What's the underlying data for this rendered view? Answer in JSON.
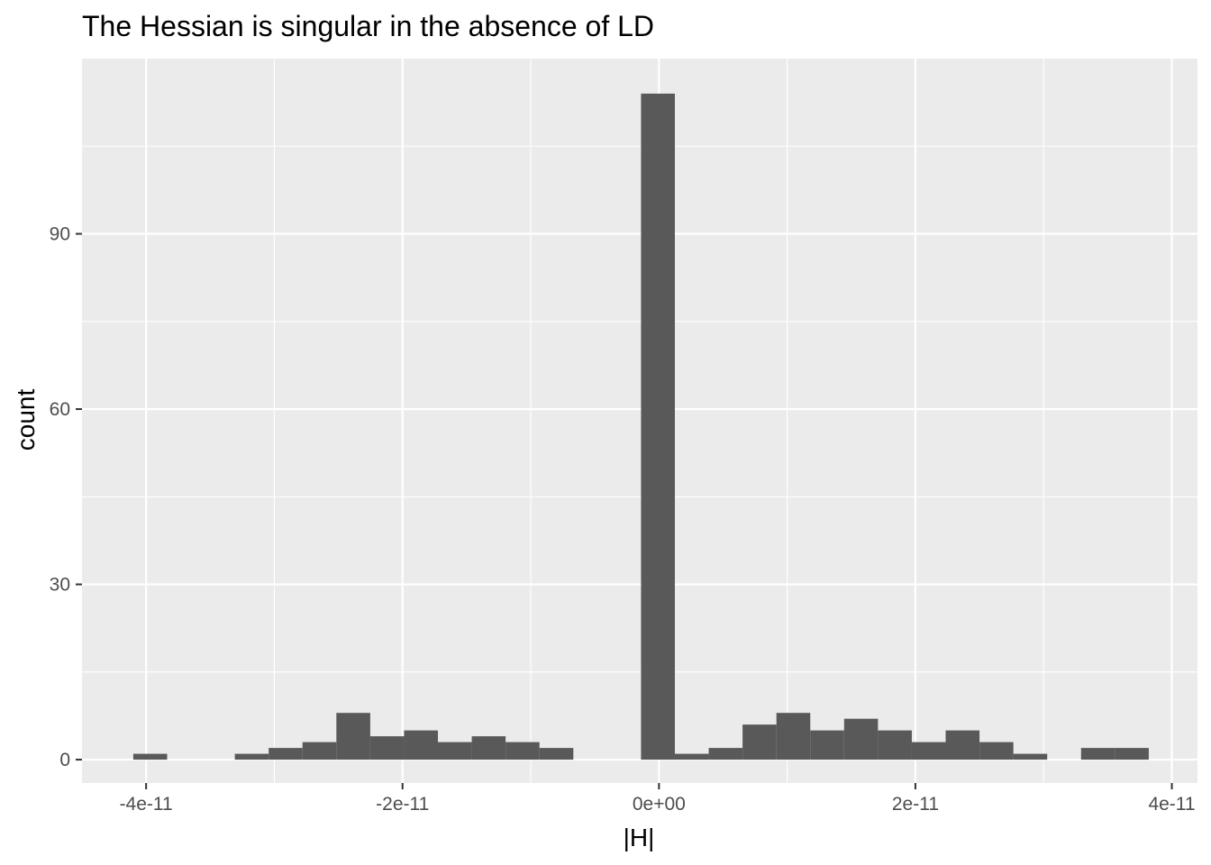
{
  "chart_data": {
    "type": "bar",
    "title": "The Hessian is singular in the absence of LD",
    "xlabel": "|H|",
    "ylabel": "count",
    "xlim": [
      -4.5e-11,
      4.2e-11
    ],
    "ylim": [
      -4,
      120
    ],
    "x_ticks": [
      {
        "value": -4e-11,
        "label": "-4e-11"
      },
      {
        "value": -2e-11,
        "label": "-2e-11"
      },
      {
        "value": 0,
        "label": "0e+00"
      },
      {
        "value": 2e-11,
        "label": "2e-11"
      },
      {
        "value": 4e-11,
        "label": "4e-11"
      }
    ],
    "y_ticks": [
      {
        "value": 0,
        "label": "0"
      },
      {
        "value": 30,
        "label": "30"
      },
      {
        "value": 60,
        "label": "60"
      },
      {
        "value": 90,
        "label": "90"
      }
    ],
    "bin_width": 2.64e-12,
    "bins_start": [
      -4.1e-11,
      -3.836e-11,
      -3.572e-11,
      -3.308e-11,
      -3.044e-11,
      -2.78e-11,
      -2.516e-11,
      -2.252e-11,
      -1.988e-11,
      -1.724e-11,
      -1.46e-11,
      -1.196e-11,
      -9.32e-12,
      -6.68e-12,
      -4.04e-12,
      -1.4e-12,
      1.24e-12,
      3.88e-12,
      6.52e-12,
      9.16e-12,
      1.18e-11,
      1.444e-11,
      1.708e-11,
      1.972e-11,
      2.236e-11,
      2.5e-11,
      2.764e-11,
      3.028e-11,
      3.292e-11,
      3.556e-11
    ],
    "counts": [
      1,
      0,
      0,
      1,
      2,
      3,
      8,
      4,
      5,
      3,
      4,
      3,
      2,
      0,
      0,
      114,
      1,
      2,
      6,
      8,
      5,
      7,
      5,
      3,
      5,
      3,
      1,
      0,
      2,
      2
    ],
    "grid": true,
    "legend": "none",
    "colors": {
      "panel": "#ebebeb",
      "grid_major": "#ffffff",
      "bar": "#595959",
      "tick": "#333333",
      "tick_label": "#4d4d4d"
    }
  }
}
